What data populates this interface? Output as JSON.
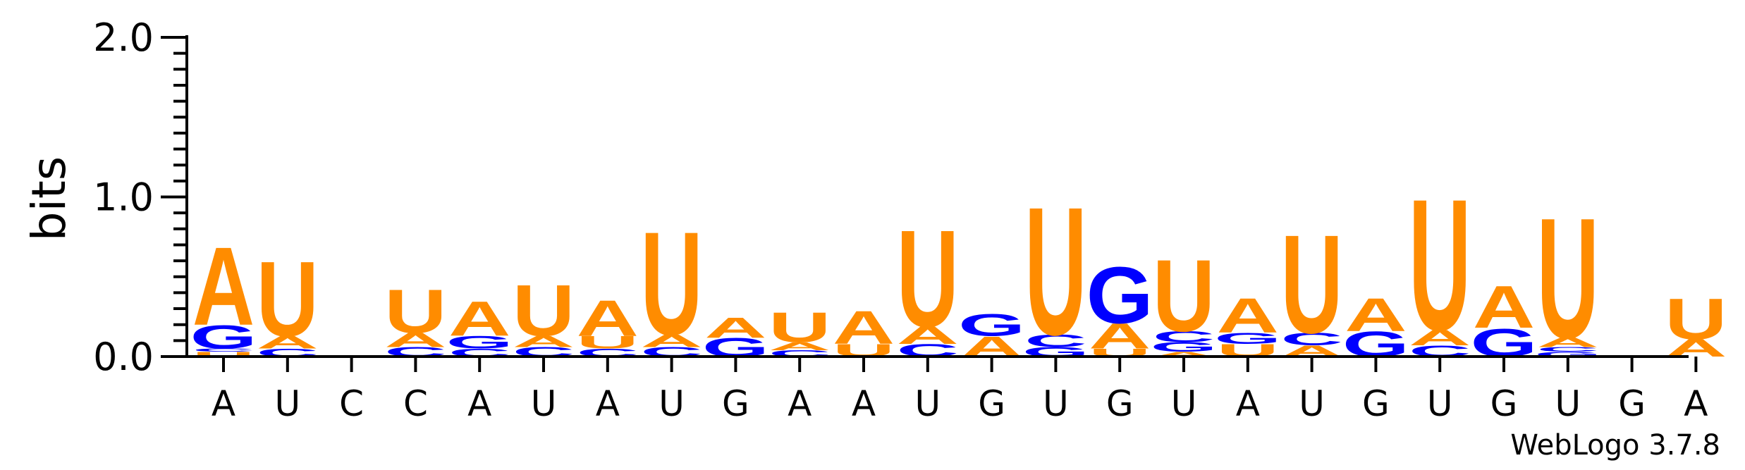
{
  "chart_data": {
    "type": "sequence-logo",
    "ylabel": "bits",
    "ylim": [
      0,
      2.0
    ],
    "yticks": [
      "0.0",
      "1.0",
      "2.0"
    ],
    "credit": "WebLogo 3.7.8",
    "colors": {
      "A": "#ff8c00",
      "U": "#ff8c00",
      "G": "#0000ff",
      "C": "#0000ff"
    },
    "positions": [
      {
        "label": "A",
        "stack": [
          {
            "l": "U",
            "h": 0.03
          },
          {
            "l": "C",
            "h": 0.02
          },
          {
            "l": "G",
            "h": 0.15
          },
          {
            "l": "A",
            "h": 0.5
          }
        ]
      },
      {
        "label": "U",
        "stack": [
          {
            "l": "C",
            "h": 0.05
          },
          {
            "l": "A",
            "h": 0.08
          },
          {
            "l": "U",
            "h": 0.48
          }
        ]
      },
      {
        "label": "C",
        "stack": []
      },
      {
        "label": "C",
        "stack": [
          {
            "l": "C",
            "h": 0.06
          },
          {
            "l": "A",
            "h": 0.09
          },
          {
            "l": "U",
            "h": 0.28
          }
        ]
      },
      {
        "label": "A",
        "stack": [
          {
            "l": "C",
            "h": 0.05
          },
          {
            "l": "G",
            "h": 0.08
          },
          {
            "l": "A",
            "h": 0.22
          }
        ]
      },
      {
        "label": "U",
        "stack": [
          {
            "l": "C",
            "h": 0.06
          },
          {
            "l": "A",
            "h": 0.07
          },
          {
            "l": "U",
            "h": 0.33
          }
        ]
      },
      {
        "label": "A",
        "stack": [
          {
            "l": "C",
            "h": 0.05
          },
          {
            "l": "U",
            "h": 0.08
          },
          {
            "l": "A",
            "h": 0.23
          }
        ]
      },
      {
        "label": "U",
        "stack": [
          {
            "l": "C",
            "h": 0.06
          },
          {
            "l": "A",
            "h": 0.08
          },
          {
            "l": "U",
            "h": 0.66
          }
        ]
      },
      {
        "label": "G",
        "stack": [
          {
            "l": "G",
            "h": 0.12
          },
          {
            "l": "A",
            "h": 0.13
          }
        ]
      },
      {
        "label": "A",
        "stack": [
          {
            "l": "C",
            "h": 0.04
          },
          {
            "l": "A",
            "h": 0.05
          },
          {
            "l": "U",
            "h": 0.19
          }
        ]
      },
      {
        "label": "A",
        "stack": [
          {
            "l": "U",
            "h": 0.08
          },
          {
            "l": "A",
            "h": 0.21
          }
        ]
      },
      {
        "label": "U",
        "stack": [
          {
            "l": "C",
            "h": 0.08
          },
          {
            "l": "A",
            "h": 0.11
          },
          {
            "l": "U",
            "h": 0.62
          }
        ]
      },
      {
        "label": "G",
        "stack": [
          {
            "l": "A",
            "h": 0.13
          },
          {
            "l": "G",
            "h": 0.14
          }
        ]
      },
      {
        "label": "U",
        "stack": [
          {
            "l": "G",
            "h": 0.06
          },
          {
            "l": "C",
            "h": 0.08
          },
          {
            "l": "U",
            "h": 0.82
          }
        ]
      },
      {
        "label": "G",
        "stack": [
          {
            "l": "U",
            "h": 0.05
          },
          {
            "l": "A",
            "h": 0.16
          },
          {
            "l": "G",
            "h": 0.36
          }
        ]
      },
      {
        "label": "U",
        "stack": [
          {
            "l": "A",
            "h": 0.03
          },
          {
            "l": "G",
            "h": 0.06
          },
          {
            "l": "C",
            "h": 0.07
          },
          {
            "l": "U",
            "h": 0.46
          }
        ]
      },
      {
        "label": "A",
        "stack": [
          {
            "l": "U",
            "h": 0.08
          },
          {
            "l": "G",
            "h": 0.07
          },
          {
            "l": "A",
            "h": 0.22
          }
        ]
      },
      {
        "label": "U",
        "stack": [
          {
            "l": "A",
            "h": 0.07
          },
          {
            "l": "C",
            "h": 0.08
          },
          {
            "l": "U",
            "h": 0.63
          }
        ]
      },
      {
        "label": "G",
        "stack": [
          {
            "l": "G",
            "h": 0.16
          },
          {
            "l": "A",
            "h": 0.21
          }
        ]
      },
      {
        "label": "U",
        "stack": [
          {
            "l": "C",
            "h": 0.07
          },
          {
            "l": "A",
            "h": 0.1
          },
          {
            "l": "U",
            "h": 0.84
          }
        ]
      },
      {
        "label": "G",
        "stack": [
          {
            "l": "G",
            "h": 0.18
          },
          {
            "l": "A",
            "h": 0.27
          }
        ]
      },
      {
        "label": "U",
        "stack": [
          {
            "l": "G",
            "h": 0.03
          },
          {
            "l": "C",
            "h": 0.03
          },
          {
            "l": "A",
            "h": 0.06
          },
          {
            "l": "U",
            "h": 0.77
          }
        ]
      },
      {
        "label": "G",
        "stack": []
      },
      {
        "label": "A",
        "stack": [
          {
            "l": "A",
            "h": 0.11
          },
          {
            "l": "U",
            "h": 0.26
          }
        ]
      }
    ]
  }
}
